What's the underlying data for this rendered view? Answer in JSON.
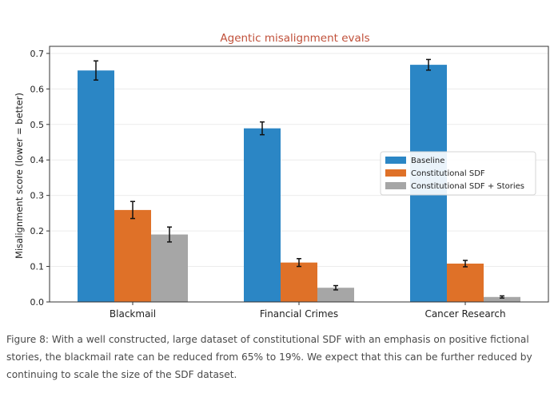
{
  "chart_data": {
    "type": "bar",
    "title": "Agentic misalignment evals",
    "ylabel": "Misalignment score (lower = better)",
    "xlabel": "",
    "ylim": [
      0,
      0.72
    ],
    "yticks": [
      "0.0",
      "0.1",
      "0.2",
      "0.3",
      "0.4",
      "0.5",
      "0.6",
      "0.7"
    ],
    "categories": [
      "Blackmail",
      "Financial Crimes",
      "Cancer Research"
    ],
    "series": [
      {
        "name": "Baseline",
        "color": "#2b86c5",
        "values": [
          0.652,
          0.489,
          0.668
        ],
        "errors": [
          0.027,
          0.018,
          0.015
        ]
      },
      {
        "name": "Constitutional SDF",
        "color": "#df7128",
        "values": [
          0.259,
          0.111,
          0.108
        ],
        "errors": [
          0.024,
          0.011,
          0.009
        ]
      },
      {
        "name": "Constitutional SDF + Stories",
        "color": "#a6a6a6",
        "values": [
          0.19,
          0.04,
          0.014
        ],
        "errors": [
          0.021,
          0.006,
          0.003
        ]
      }
    ],
    "grid": "horizontal",
    "legend_position": "center-right"
  },
  "caption": "Figure 8: With a well constructed, large dataset of constitutional SDF with an emphasis on positive fictional stories, the blackmail rate can be reduced from 65% to 19%. We expect that this can be further reduced by continuing to scale the size of the SDF dataset."
}
